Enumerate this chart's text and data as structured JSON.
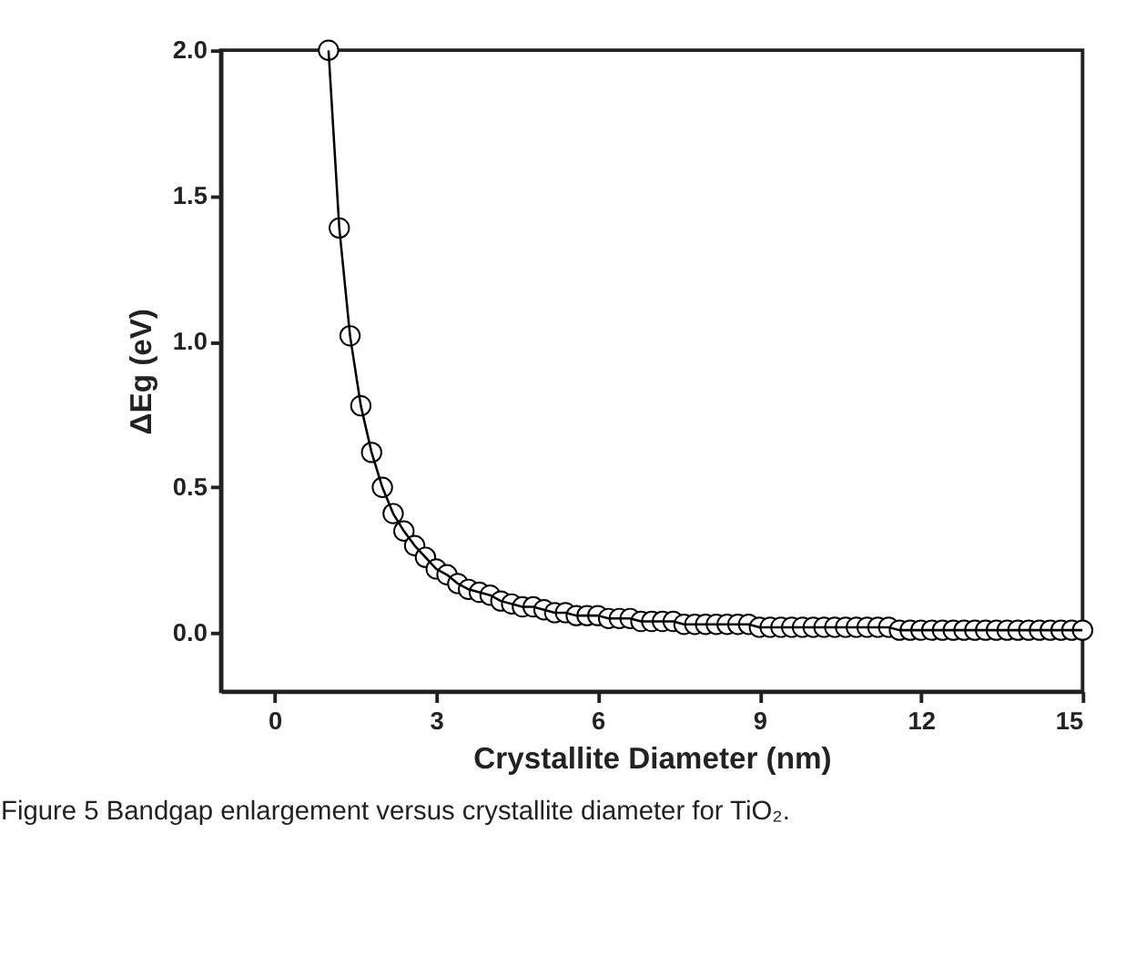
{
  "chart_data": {
    "type": "scatter",
    "xlabel": "Crystallite Diameter (nm)",
    "ylabel": "ΔEg (eV)",
    "annotations": [
      "Figure 5 Bandgap enlargement versus crystallite diameter for TiO₂."
    ],
    "x": [
      1.0,
      1.2,
      1.4,
      1.6,
      1.8,
      2.0,
      2.2,
      2.4,
      2.6,
      2.8,
      3.0,
      3.2,
      3.4,
      3.6,
      3.8,
      4.0,
      4.2,
      4.4,
      4.6,
      4.8,
      5.0,
      5.2,
      5.4,
      5.6,
      5.8,
      6.0,
      6.2,
      6.4,
      6.6,
      6.8,
      7.0,
      7.2,
      7.4,
      7.6,
      7.8,
      8.0,
      8.2,
      8.4,
      8.6,
      8.8,
      9.0,
      9.2,
      9.4,
      9.6,
      9.8,
      10.0,
      10.2,
      10.4,
      10.6,
      10.8,
      11.0,
      11.2,
      11.4,
      11.6,
      11.8,
      12.0,
      12.2,
      12.4,
      12.6,
      12.8,
      13.0,
      13.2,
      13.4,
      13.6,
      13.8,
      14.0,
      14.2,
      14.4,
      14.6,
      14.8,
      15.0
    ],
    "series": [
      {
        "color": "#000000",
        "marker": "circle",
        "values": [
          2.0,
          1.39,
          1.02,
          0.78,
          0.62,
          0.5,
          0.41,
          0.35,
          0.3,
          0.26,
          0.22,
          0.2,
          0.17,
          0.15,
          0.14,
          0.13,
          0.11,
          0.1,
          0.09,
          0.09,
          0.08,
          0.07,
          0.07,
          0.06,
          0.06,
          0.06,
          0.05,
          0.05,
          0.05,
          0.04,
          0.04,
          0.04,
          0.04,
          0.03,
          0.03,
          0.03,
          0.03,
          0.03,
          0.03,
          0.03,
          0.02,
          0.02,
          0.02,
          0.02,
          0.02,
          0.02,
          0.02,
          0.02,
          0.02,
          0.02,
          0.02,
          0.02,
          0.02,
          0.01,
          0.01,
          0.01,
          0.01,
          0.01,
          0.01,
          0.01,
          0.01,
          0.01,
          0.01,
          0.01,
          0.01,
          0.01,
          0.01,
          0.01,
          0.01,
          0.01,
          0.01
        ]
      },
      {
        "type": "line",
        "color": "#000000",
        "marker": "none",
        "line_style": "solid",
        "values": [
          2.0,
          1.39,
          1.02,
          0.78,
          0.62,
          0.5,
          0.41,
          0.35,
          0.3,
          0.26,
          0.22,
          0.2,
          0.17,
          0.15,
          0.14,
          0.13,
          0.11,
          0.1,
          0.09,
          0.09,
          0.08,
          0.07,
          0.07,
          0.06,
          0.06,
          0.06,
          0.05,
          0.05,
          0.05,
          0.04,
          0.04,
          0.04,
          0.04,
          0.03,
          0.03,
          0.03,
          0.03,
          0.03,
          0.03,
          0.03,
          0.02,
          0.02,
          0.02,
          0.02,
          0.02,
          0.02,
          0.02,
          0.02,
          0.02,
          0.02,
          0.02,
          0.02,
          0.02,
          0.01,
          0.01,
          0.01,
          0.01,
          0.01,
          0.01,
          0.01,
          0.01,
          0.01,
          0.01,
          0.01,
          0.01,
          0.01,
          0.01,
          0.01,
          0.01,
          0.01,
          0.01
        ]
      }
    ],
    "xlim": [
      -1,
      15
    ],
    "xticks": [
      0,
      3,
      6,
      9,
      12,
      15
    ],
    "ylim": [
      -0.2,
      2.0
    ],
    "yticks": [
      {
        "value": 0,
        "label": "0.0"
      },
      {
        "value": 0.5,
        "label": "0.5"
      },
      {
        "value": 1,
        "label": "1.0"
      },
      {
        "value": 1.5,
        "label": "1.5"
      },
      {
        "value": 2,
        "label": "2.0"
      }
    ],
    "grid": false
  }
}
